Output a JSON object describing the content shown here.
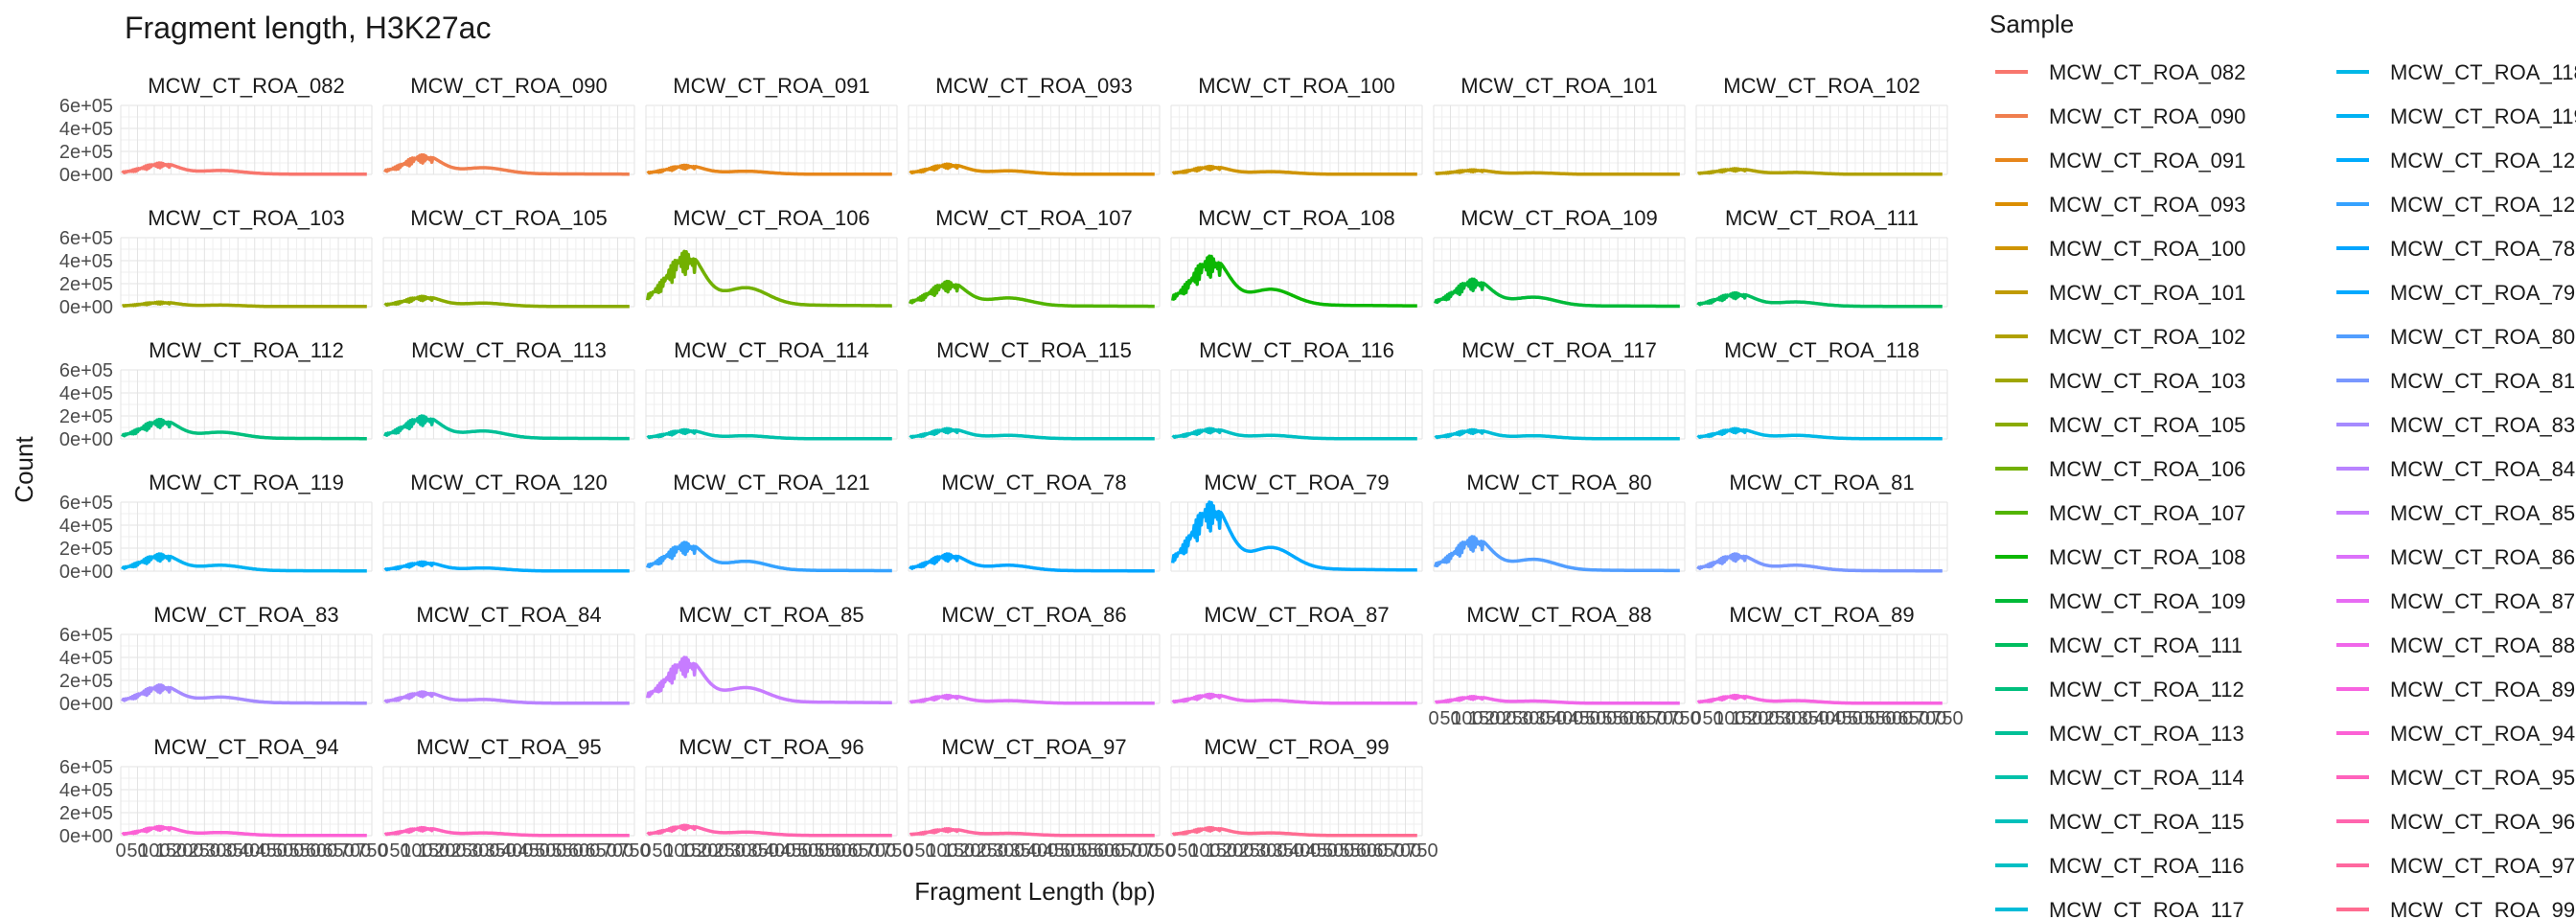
{
  "chart_data": {
    "type": "line",
    "title": "Fragment length, H3K27ac",
    "xlabel": "Fragment Length (bp)",
    "ylabel": "Count",
    "legend_title": "Sample",
    "legend_position": "right",
    "grid": true,
    "y_ticks": [
      "6e+05",
      "4e+05",
      "2e+05",
      "0e+00"
    ],
    "y_tick_values": [
      600000,
      400000,
      200000,
      0
    ],
    "ylim": [
      0,
      600000
    ],
    "x_ticks": [
      "0",
      "50",
      "100",
      "150",
      "200",
      "250",
      "300",
      "350",
      "400",
      "450",
      "500",
      "550",
      "600",
      "650",
      "700",
      "750"
    ],
    "xlim": [
      0,
      750
    ],
    "panels": [
      {
        "name": "MCW_CT_ROA_082",
        "color": "#F8766D",
        "peak": 100000
      },
      {
        "name": "MCW_CT_ROA_090",
        "color": "#F07E4E",
        "peak": 170000
      },
      {
        "name": "MCW_CT_ROA_091",
        "color": "#E7861B",
        "peak": 80000
      },
      {
        "name": "MCW_CT_ROA_093",
        "color": "#DB8E00",
        "peak": 90000
      },
      {
        "name": "MCW_CT_ROA_100",
        "color": "#CF9400",
        "peak": 70000
      },
      {
        "name": "MCW_CT_ROA_101",
        "color": "#C09B00",
        "peak": 40000
      },
      {
        "name": "MCW_CT_ROA_102",
        "color": "#B0A100",
        "peak": 50000
      },
      {
        "name": "MCW_CT_ROA_103",
        "color": "#9FA600",
        "peak": 40000
      },
      {
        "name": "MCW_CT_ROA_105",
        "color": "#8AAB00",
        "peak": 90000
      },
      {
        "name": "MCW_CT_ROA_106",
        "color": "#72B000",
        "peak": 480000
      },
      {
        "name": "MCW_CT_ROA_107",
        "color": "#52B400",
        "peak": 220000
      },
      {
        "name": "MCW_CT_ROA_108",
        "color": "#0CB702",
        "peak": 440000
      },
      {
        "name": "MCW_CT_ROA_109",
        "color": "#00BA38",
        "peak": 240000
      },
      {
        "name": "MCW_CT_ROA_111",
        "color": "#00BD5F",
        "peak": 120000
      },
      {
        "name": "MCW_CT_ROA_112",
        "color": "#00BF7D",
        "peak": 170000
      },
      {
        "name": "MCW_CT_ROA_113",
        "color": "#00C097",
        "peak": 200000
      },
      {
        "name": "MCW_CT_ROA_114",
        "color": "#00C1AA",
        "peak": 80000
      },
      {
        "name": "MCW_CT_ROA_115",
        "color": "#00C0BB",
        "peak": 90000
      },
      {
        "name": "MCW_CT_ROA_116",
        "color": "#00BFC4",
        "peak": 90000
      },
      {
        "name": "MCW_CT_ROA_117",
        "color": "#00BCD8",
        "peak": 80000
      },
      {
        "name": "MCW_CT_ROA_118",
        "color": "#00B8E7",
        "peak": 90000
      },
      {
        "name": "MCW_CT_ROA_119",
        "color": "#00B2F3",
        "peak": 150000
      },
      {
        "name": "MCW_CT_ROA_120",
        "color": "#00ABFD",
        "peak": 80000
      },
      {
        "name": "MCW_CT_ROA_121",
        "color": "#35A2FF",
        "peak": 250000
      },
      {
        "name": "MCW_CT_ROA_78",
        "color": "#00A5FF",
        "peak": 150000
      },
      {
        "name": "MCW_CT_ROA_79",
        "color": "#00A9FF",
        "peak": 600000
      },
      {
        "name": "MCW_CT_ROA_80",
        "color": "#529EFF",
        "peak": 300000
      },
      {
        "name": "MCW_CT_ROA_81",
        "color": "#7997FF",
        "peak": 150000
      },
      {
        "name": "MCW_CT_ROA_83",
        "color": "#A58AFF",
        "peak": 160000
      },
      {
        "name": "MCW_CT_ROA_84",
        "color": "#B983FF",
        "peak": 100000
      },
      {
        "name": "MCW_CT_ROA_85",
        "color": "#C77CFF",
        "peak": 400000
      },
      {
        "name": "MCW_CT_ROA_86",
        "color": "#DC71FA",
        "peak": 70000
      },
      {
        "name": "MCW_CT_ROA_87",
        "color": "#E76BF3",
        "peak": 80000
      },
      {
        "name": "MCW_CT_ROA_88",
        "color": "#F066EA",
        "peak": 60000
      },
      {
        "name": "MCW_CT_ROA_89",
        "color": "#F763E0",
        "peak": 70000
      },
      {
        "name": "MCW_CT_ROA_94",
        "color": "#FC61D5",
        "peak": 80000
      },
      {
        "name": "MCW_CT_ROA_95",
        "color": "#FF62BC",
        "peak": 70000
      },
      {
        "name": "MCW_CT_ROA_96",
        "color": "#FF65AE",
        "peak": 90000
      },
      {
        "name": "MCW_CT_ROA_97",
        "color": "#FF689F",
        "peak": 60000
      },
      {
        "name": "MCW_CT_ROA_99",
        "color": "#FF6C91",
        "peak": 70000
      }
    ]
  }
}
